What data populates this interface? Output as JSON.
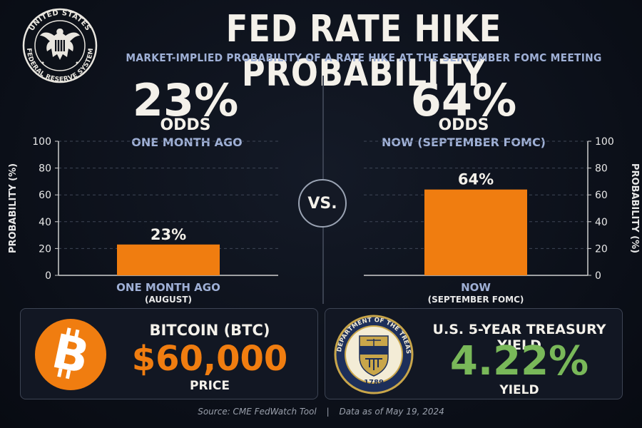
{
  "header": {
    "title": "FED RATE HIKE PROBABILITY",
    "subtitle": "MARKET-IMPLIED PROBABILITY OF A RATE HIKE AT THE SEPTEMBER FOMC MEETING",
    "seal_text": "UNITED STATES FEDERAL RESERVE SYSTEM"
  },
  "left_panel": {
    "big_value": "23%",
    "odds_label": "ODDS",
    "period": "ONE MONTH AGO"
  },
  "right_panel": {
    "big_value": "64%",
    "odds_label": "ODDS",
    "period": "NOW (SEPTEMBER FOMC)"
  },
  "vs_label": "VS.",
  "chart_data": [
    {
      "type": "bar",
      "categories": [
        "ONE MONTH AGO"
      ],
      "category_sublabels": [
        "(AUGUST)"
      ],
      "values": [
        23
      ],
      "data_labels": [
        "23%"
      ],
      "ylabel": "PROBABILITY (%)",
      "ylim": [
        0,
        100
      ],
      "yticks": [
        0,
        20,
        40,
        60,
        80,
        100
      ],
      "grid": true,
      "axis_side": "left",
      "bar_color": "#f07d10"
    },
    {
      "type": "bar",
      "categories": [
        "NOW"
      ],
      "category_sublabels": [
        "(SEPTEMBER FOMC)"
      ],
      "values": [
        64
      ],
      "data_labels": [
        "64%"
      ],
      "ylabel": "PROBABILITY (%)",
      "ylim": [
        0,
        100
      ],
      "yticks": [
        0,
        20,
        40,
        60,
        80,
        100
      ],
      "grid": true,
      "axis_side": "right",
      "bar_color": "#f07d10"
    }
  ],
  "bitcoin_card": {
    "title": "BITCOIN (BTC)",
    "value": "$60,000",
    "label": "PRICE",
    "icon": "bitcoin-icon",
    "accent": "#f07d10"
  },
  "treasury_card": {
    "title": "U.S. 5-YEAR TREASURY YIELD",
    "value": "4.22%",
    "label": "YIELD",
    "seal_text": "THE DEPARTMENT OF THE TREASURY",
    "seal_year": "1789",
    "accent": "#79b859"
  },
  "footer": {
    "source": "Source: CME FedWatch Tool",
    "separator": "|",
    "date": "Data as of May 19, 2024"
  }
}
